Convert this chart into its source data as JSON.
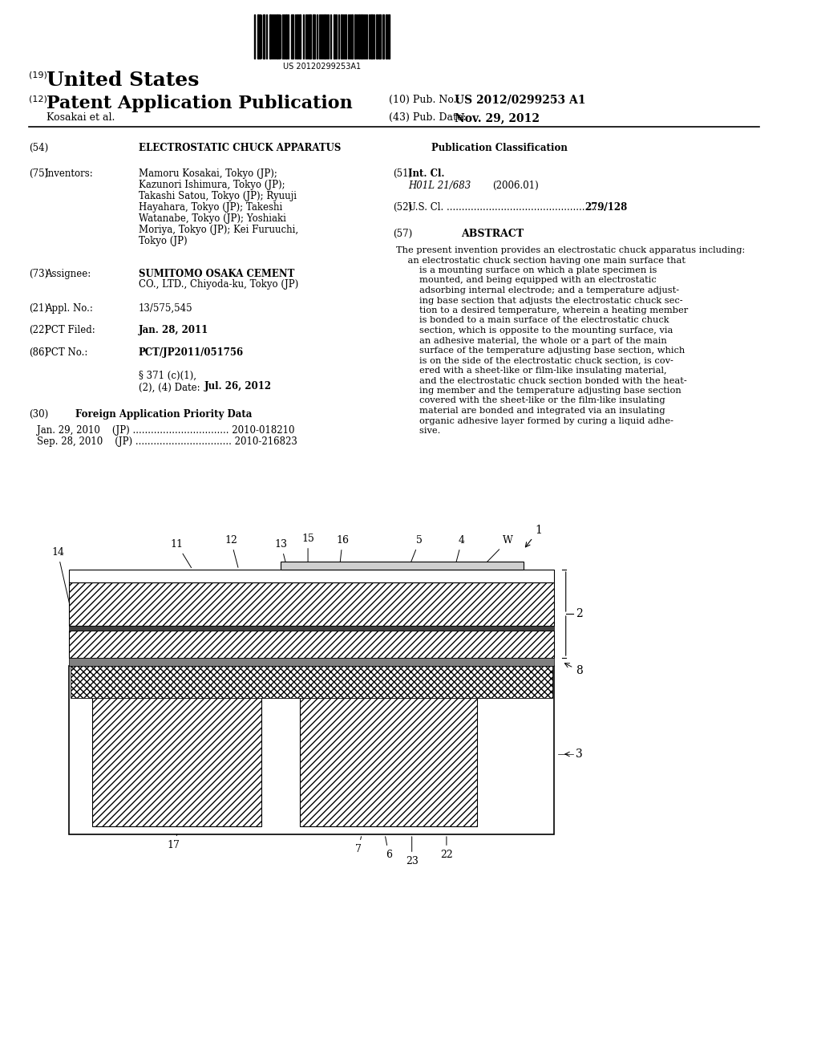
{
  "barcode_text": "US 20120299253A1",
  "country": "United States",
  "doc_type": "Patent Application Publication",
  "pub_num_label": "(10) Pub. No.:",
  "pub_num": "US 2012/0299253 A1",
  "inventors_label": "Kosakai et al.",
  "pub_date_label": "(43) Pub. Date:",
  "pub_date": "Nov. 29, 2012",
  "num19": "(19)",
  "num12": "(12)",
  "title_num": "(54)",
  "title": "ELECTROSTATIC CHUCK APPARATUS",
  "inventors_num": "(75)",
  "inventors_key": "Inventors:",
  "inventors_val": "Mamoru Kosakai, Tokyo (JP);\nKazunori Ishimura, Tokyo (JP);\nTakashi Satou, Tokyo (JP); Ryuuji\nHayahara, Tokyo (JP); Takeshi\nWatanabe, Tokyo (JP); Yoshiaki\nMoriya, Tokyo (JP); Kei Furuuchi,\nTokyo (JP)",
  "assignee_num": "(73)",
  "assignee_key": "Assignee:",
  "assignee_val": "SUMITOMO OSAKA CEMENT\nCO., LTD., Chiyoda-ku, Tokyo (JP)",
  "appl_num": "(21)",
  "appl_key": "Appl. No.:",
  "appl_val": "13/575,545",
  "pct_filed_num": "(22)",
  "pct_filed_key": "PCT Filed:",
  "pct_filed_val": "Jan. 28, 2011",
  "pct_no_num": "(86)",
  "pct_no_key": "PCT No.:",
  "pct_no_val": "PCT/JP2011/051756",
  "section371": "§ 371 (c)(1),\n(2), (4) Date:",
  "section371_val": "Jul. 26, 2012",
  "foreign_num": "(30)",
  "foreign_key": "Foreign Application Priority Data",
  "foreign_line1": "Jan. 29, 2010    (JP) ................................ 2010-018210",
  "foreign_line2": "Sep. 28, 2010    (JP) ................................ 2010-216823",
  "pub_class_header": "Publication Classification",
  "intcl_num": "(51)",
  "intcl_key": "Int. Cl.",
  "intcl_val": "H01L 21/683",
  "intcl_date": "(2006.01)",
  "uscl_num": "(52)",
  "uscl_key": "U.S. Cl. .....................................................",
  "uscl_val": "279/128",
  "abstract_num": "(57)",
  "abstract_title": "ABSTRACT",
  "abstract_text": "The present invention provides an electrostatic chuck apparatus including:\n    an electrostatic chuck section having one main surface that\n        is a mounting surface on which a plate specimen is\n        mounted, and being equipped with an electrostatic\n        adsorbing internal electrode; and a temperature adjust-\n        ing base section that adjusts the electrostatic chuck sec-\n        tion to a desired temperature, wherein a heating member\n        is bonded to a main surface of the electrostatic chuck\n        section, which is opposite to the mounting surface, via\n        an adhesive material, the whole or a part of the main\n        surface of the temperature adjusting base section, which\n        is on the side of the electrostatic chuck section, is cov-\n        ered with a sheet-like or film-like insulating material,\n        and the electrostatic chuck section bonded with the heat-\n        ing member and the temperature adjusting base section\n        covered with the sheet-like or the film-like insulating\n        material are bonded and integrated via an insulating\n        organic adhesive layer formed by curing a liquid adhe-\n        sive.",
  "bg_color": "#ffffff",
  "text_color": "#000000"
}
